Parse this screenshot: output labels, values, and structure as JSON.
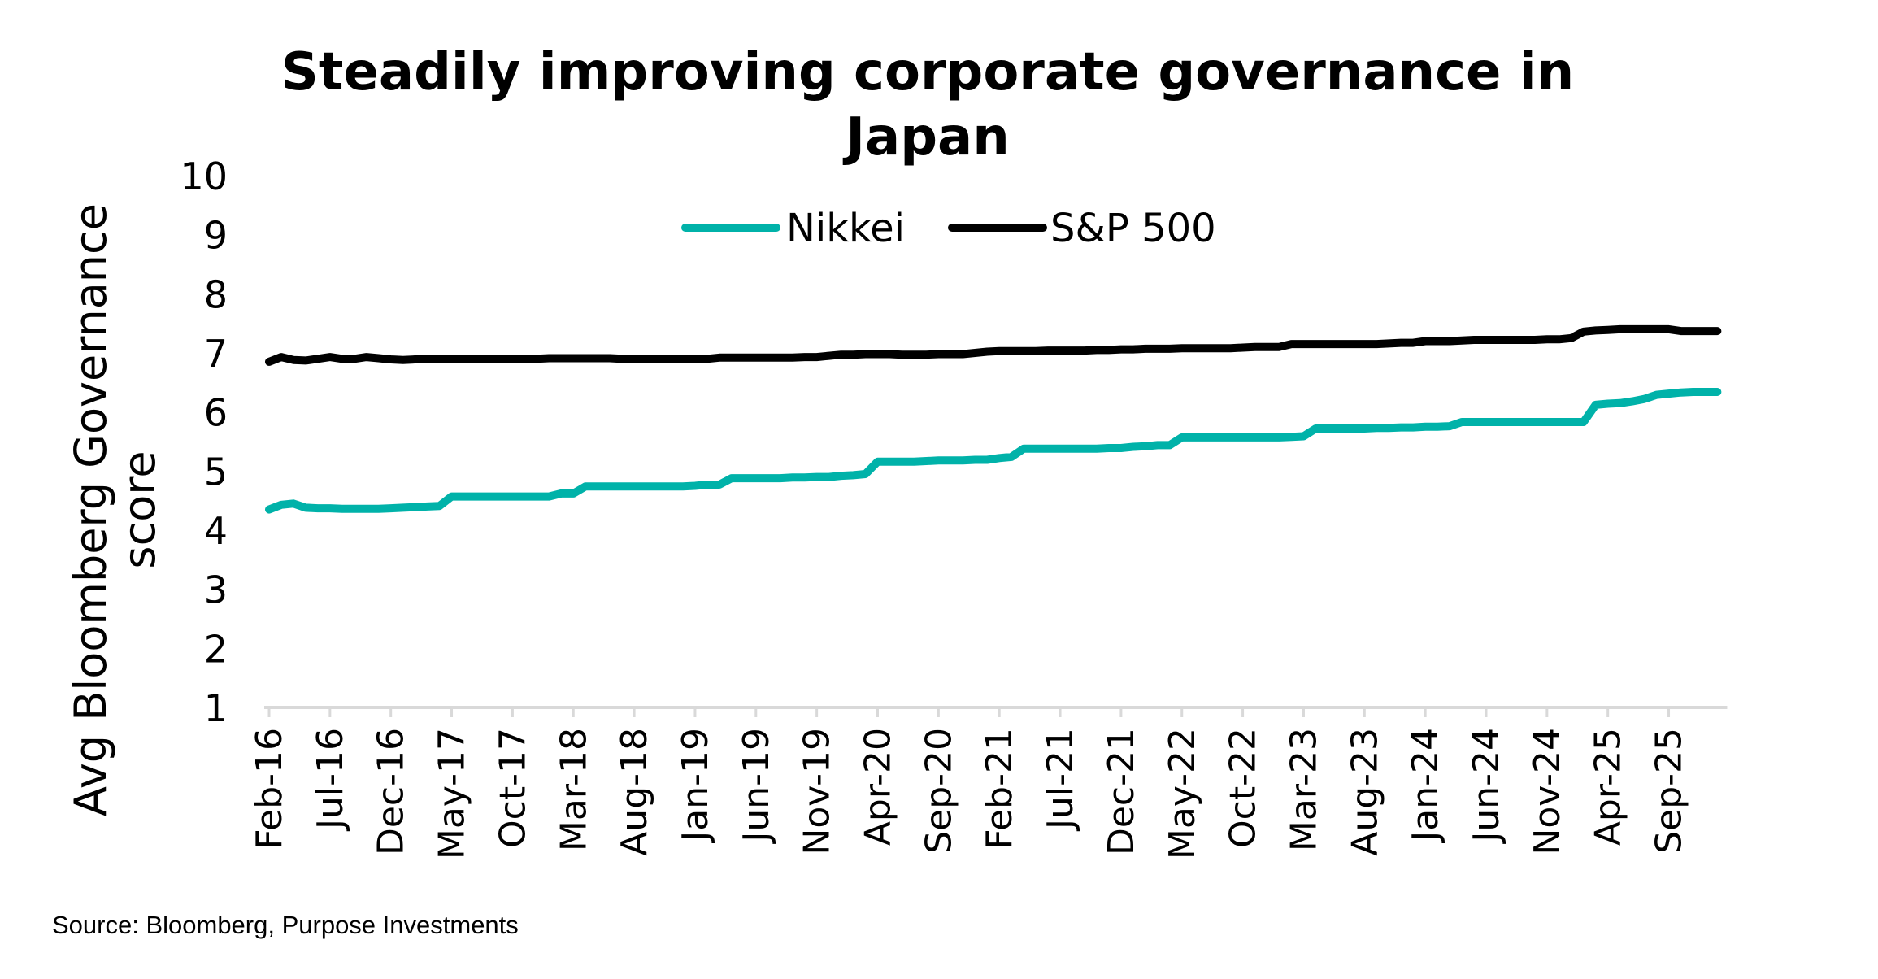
{
  "chart_data": {
    "type": "line",
    "title": "Steadily improving corporate governance in Japan",
    "title_lines": [
      "Steadily improving corporate governance in",
      "Japan"
    ],
    "ylabel_lines": [
      "Avg Bloomberg Governance",
      "score"
    ],
    "xlabel": "",
    "ylim": [
      1,
      10
    ],
    "yticks": [
      1,
      2,
      3,
      4,
      5,
      6,
      7,
      8,
      9,
      10
    ],
    "grid": false,
    "legend": "top-center",
    "xtick_labels": [
      "Feb-16",
      "Jul-16",
      "Dec-16",
      "May-17",
      "Oct-17",
      "Mar-18",
      "Aug-18",
      "Jan-19",
      "Jun-19",
      "Nov-19",
      "Apr-20",
      "Sep-20",
      "Feb-21",
      "Jul-21",
      "Dec-21",
      "May-22",
      "Oct-22",
      "Mar-23",
      "Aug-23",
      "Jan-24",
      "Jun-24",
      "Nov-24",
      "Apr-25",
      "Sep-25"
    ],
    "x": [
      "Feb-16",
      "Mar-16",
      "Apr-16",
      "May-16",
      "Jun-16",
      "Jul-16",
      "Aug-16",
      "Sep-16",
      "Oct-16",
      "Nov-16",
      "Dec-16",
      "Jan-17",
      "Feb-17",
      "Mar-17",
      "Apr-17",
      "May-17",
      "Jun-17",
      "Jul-17",
      "Aug-17",
      "Sep-17",
      "Oct-17",
      "Nov-17",
      "Dec-17",
      "Jan-18",
      "Feb-18",
      "Mar-18",
      "Apr-18",
      "May-18",
      "Jun-18",
      "Jul-18",
      "Aug-18",
      "Sep-18",
      "Oct-18",
      "Nov-18",
      "Dec-18",
      "Jan-19",
      "Feb-19",
      "Mar-19",
      "Apr-19",
      "May-19",
      "Jun-19",
      "Jul-19",
      "Aug-19",
      "Sep-19",
      "Oct-19",
      "Nov-19",
      "Dec-19",
      "Jan-20",
      "Feb-20",
      "Mar-20",
      "Apr-20",
      "May-20",
      "Jun-20",
      "Jul-20",
      "Aug-20",
      "Sep-20",
      "Oct-20",
      "Nov-20",
      "Dec-20",
      "Jan-21",
      "Feb-21",
      "Mar-21",
      "Apr-21",
      "May-21",
      "Jun-21",
      "Jul-21",
      "Aug-21",
      "Sep-21",
      "Oct-21",
      "Nov-21",
      "Dec-21",
      "Jan-22",
      "Feb-22",
      "Mar-22",
      "Apr-22",
      "May-22",
      "Jun-22",
      "Jul-22",
      "Aug-22",
      "Sep-22",
      "Oct-22",
      "Nov-22",
      "Dec-22",
      "Jan-23",
      "Feb-23",
      "Mar-23",
      "Apr-23",
      "May-23",
      "Jun-23",
      "Jul-23",
      "Aug-23",
      "Sep-23",
      "Oct-23",
      "Nov-23",
      "Dec-23",
      "Jan-24",
      "Feb-24",
      "Mar-24",
      "Apr-24",
      "May-24",
      "Jun-24",
      "Jul-24",
      "Aug-24",
      "Sep-24",
      "Oct-24",
      "Nov-24",
      "Dec-24",
      "Jan-25",
      "Feb-25",
      "Mar-25",
      "Apr-25",
      "May-25",
      "Jun-25",
      "Jul-25",
      "Aug-25",
      "Sep-25",
      "Oct-25",
      "Nov-25",
      "Dec-25",
      "Jan-26"
    ],
    "series": [
      {
        "name": "Nikkei",
        "color": "#00B2A9",
        "values": [
          4.35,
          4.43,
          4.45,
          4.38,
          4.37,
          4.37,
          4.36,
          4.36,
          4.36,
          4.36,
          4.37,
          4.38,
          4.39,
          4.4,
          4.41,
          4.57,
          4.57,
          4.57,
          4.57,
          4.57,
          4.57,
          4.57,
          4.57,
          4.57,
          4.62,
          4.62,
          4.74,
          4.74,
          4.74,
          4.74,
          4.74,
          4.74,
          4.74,
          4.74,
          4.74,
          4.75,
          4.77,
          4.77,
          4.88,
          4.88,
          4.88,
          4.88,
          4.88,
          4.89,
          4.89,
          4.9,
          4.9,
          4.92,
          4.93,
          4.95,
          5.16,
          5.16,
          5.16,
          5.16,
          5.17,
          5.18,
          5.18,
          5.18,
          5.19,
          5.19,
          5.22,
          5.24,
          5.38,
          5.38,
          5.38,
          5.38,
          5.38,
          5.38,
          5.38,
          5.39,
          5.39,
          5.41,
          5.42,
          5.44,
          5.44,
          5.57,
          5.57,
          5.57,
          5.57,
          5.57,
          5.57,
          5.57,
          5.57,
          5.57,
          5.58,
          5.59,
          5.72,
          5.72,
          5.72,
          5.72,
          5.72,
          5.73,
          5.73,
          5.74,
          5.74,
          5.75,
          5.75,
          5.76,
          5.83,
          5.83,
          5.83,
          5.83,
          5.83,
          5.83,
          5.83,
          5.83,
          5.83,
          5.83,
          5.83,
          6.12,
          6.14,
          6.15,
          6.18,
          6.22,
          6.29,
          6.31,
          6.33,
          6.34,
          6.34,
          6.34
        ]
      },
      {
        "name": "S&P 500",
        "color": "#000000",
        "values": [
          6.85,
          6.93,
          6.88,
          6.87,
          6.9,
          6.93,
          6.9,
          6.9,
          6.93,
          6.91,
          6.89,
          6.88,
          6.89,
          6.89,
          6.89,
          6.89,
          6.89,
          6.89,
          6.89,
          6.9,
          6.9,
          6.9,
          6.9,
          6.91,
          6.91,
          6.91,
          6.91,
          6.91,
          6.91,
          6.9,
          6.9,
          6.9,
          6.9,
          6.9,
          6.9,
          6.9,
          6.9,
          6.92,
          6.92,
          6.92,
          6.92,
          6.92,
          6.92,
          6.92,
          6.93,
          6.93,
          6.95,
          6.97,
          6.97,
          6.98,
          6.98,
          6.98,
          6.97,
          6.97,
          6.97,
          6.98,
          6.98,
          6.98,
          7.0,
          7.02,
          7.03,
          7.03,
          7.03,
          7.03,
          7.04,
          7.04,
          7.04,
          7.04,
          7.05,
          7.05,
          7.06,
          7.06,
          7.07,
          7.07,
          7.07,
          7.08,
          7.08,
          7.08,
          7.08,
          7.08,
          7.09,
          7.1,
          7.1,
          7.1,
          7.15,
          7.15,
          7.15,
          7.15,
          7.15,
          7.15,
          7.15,
          7.15,
          7.16,
          7.17,
          7.17,
          7.2,
          7.2,
          7.2,
          7.21,
          7.22,
          7.22,
          7.22,
          7.22,
          7.22,
          7.22,
          7.23,
          7.23,
          7.25,
          7.36,
          7.38,
          7.39,
          7.4,
          7.4,
          7.4,
          7.4,
          7.4,
          7.37,
          7.37,
          7.37,
          7.37
        ]
      }
    ],
    "axis_color": "#D9D9D9"
  },
  "source": "Source: Bloomberg, Purpose Investments"
}
